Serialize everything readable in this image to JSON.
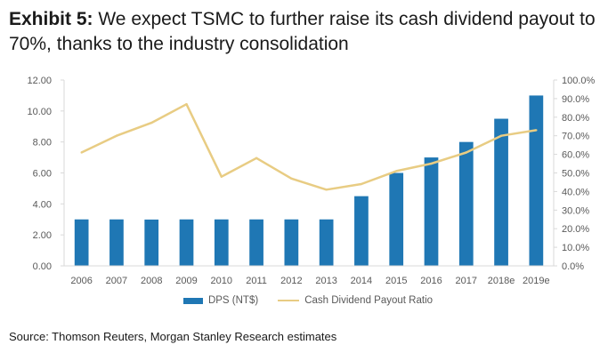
{
  "header": {
    "lead": "Exhibit 5:",
    "text": "We expect TSMC to further raise its cash dividend payout to 70%, thanks to the industry consolidation"
  },
  "source": "Source: Thomson Reuters, Morgan Stanley Research estimates",
  "colors": {
    "bar": "#1f77b4",
    "line": "#e8cc83",
    "axis_text": "#595959",
    "gridline": "#d9d9d9"
  },
  "chart_data": {
    "type": "bar",
    "categories": [
      "2006",
      "2007",
      "2008",
      "2009",
      "2010",
      "2011",
      "2012",
      "2013",
      "2014",
      "2015",
      "2016",
      "2017",
      "2018e",
      "2019e"
    ],
    "series": [
      {
        "name": "DPS (NT$)",
        "type": "bar",
        "axis": "left",
        "values": [
          3.0,
          3.0,
          2.99,
          3.0,
          3.0,
          3.0,
          3.0,
          3.0,
          4.5,
          6.0,
          7.0,
          8.0,
          9.5,
          11.0
        ]
      },
      {
        "name": "Cash Dividend Payout Ratio",
        "type": "line",
        "axis": "right",
        "values": [
          61,
          70,
          77,
          87,
          48,
          58,
          47,
          41,
          44,
          51,
          55,
          61,
          70,
          73
        ]
      }
    ],
    "y_left": {
      "min": 0,
      "max": 12,
      "step": 2,
      "tick_labels": [
        "0.00",
        "2.00",
        "4.00",
        "6.00",
        "8.00",
        "10.00",
        "12.00"
      ]
    },
    "y_right": {
      "min": 0,
      "max": 100,
      "step": 10,
      "tick_labels": [
        "0.0%",
        "10.0%",
        "20.0%",
        "30.0%",
        "40.0%",
        "50.0%",
        "60.0%",
        "70.0%",
        "80.0%",
        "90.0%",
        "100.0%"
      ]
    },
    "grid": false,
    "legend_position": "bottom"
  }
}
